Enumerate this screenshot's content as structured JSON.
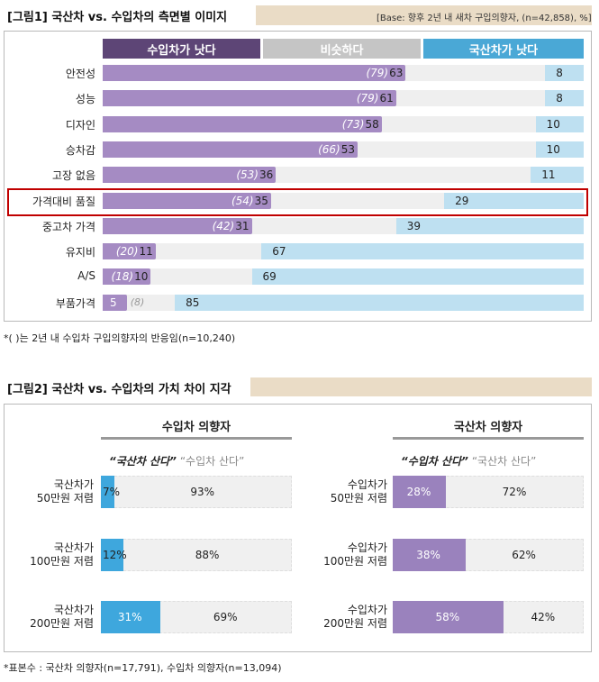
{
  "fig1": {
    "title": "[그림1] 국산차 vs. 수입차의 측면별 이미지",
    "base": "[Base: 향후 2년 내 새차 구입의향자, (n=42,858), %]",
    "header": {
      "left": "수입차가 낫다",
      "mid": "비슷하다",
      "right": "국산차가 낫다"
    },
    "footnote": "*( )는 2년 내 수입차 구입의향자의 반응임(n=10,240)"
  },
  "fig2": {
    "title": "[그림2] 국산차 vs. 수입차의 가치 차이 지각",
    "footnote": "*표본수 : 국산차 의향자(n=17,791), 수입차 의향자(n=13,094)",
    "groups": [
      {
        "name": "수입차 의향자",
        "legend_strong": "“국산차 산다”",
        "legend_weak": "“수입차 산다”"
      },
      {
        "name": "국산차 의향자",
        "legend_strong": "“수입차 산다”",
        "legend_weak": "“국산차 산다”"
      }
    ],
    "rows": [
      {
        "line1": "국산차가",
        "line2": "50만원 저렴"
      },
      {
        "line1": "국산차가",
        "line2": "100만원 저렴"
      },
      {
        "line1": "국산차가",
        "line2": "200만원 저렴"
      }
    ],
    "rows_right": [
      {
        "line1": "수입차가",
        "line2": "50만원 저렴"
      },
      {
        "line1": "수입차가",
        "line2": "100만원 저렴"
      },
      {
        "line1": "수입차가",
        "line2": "200만원 저렴"
      }
    ]
  },
  "chart_data": [
    {
      "type": "bar",
      "title": "[그림1] 국산차 vs. 수입차의 측면별 이미지",
      "categories": [
        "안전성",
        "성능",
        "디자인",
        "승차감",
        "고장 없음",
        "가격대비 품질",
        "중고차 가격",
        "유지비",
        "A/S",
        "부품가격"
      ],
      "series": [
        {
          "name": "수입차가 낫다",
          "values": [
            63,
            61,
            58,
            53,
            36,
            35,
            31,
            11,
            10,
            5
          ]
        },
        {
          "name": "국산차가 낫다",
          "values": [
            8,
            8,
            10,
            10,
            11,
            29,
            39,
            67,
            69,
            85
          ]
        },
        {
          "name": "( )",
          "values": [
            79,
            79,
            73,
            66,
            53,
            54,
            42,
            20,
            18,
            8
          ]
        }
      ],
      "highlight": "가격대비 품질",
      "colors": {
        "import": "#a58bc3",
        "domestic": "#bee0f1",
        "similar": "#efefef",
        "hdr_import": "#5d4576",
        "hdr_mid": "#c5c5c5",
        "hdr_domestic": "#4aa8d6",
        "highlight": "#c00000"
      }
    },
    {
      "type": "bar",
      "title": "[그림2] 국산차 vs. 수입차의 가치 차이 지각",
      "groups": [
        {
          "name": "수입차 의향자",
          "categories": [
            "국산차가 50만원 저렴",
            "국산차가 100만원 저렴",
            "국산차가 200만원 저렴"
          ],
          "series": [
            {
              "name": "“국산차 산다”",
              "values": [
                7,
                12,
                31
              ]
            },
            {
              "name": "“수입차 산다”",
              "values": [
                93,
                88,
                69
              ]
            }
          ],
          "color": "#3ea7dd"
        },
        {
          "name": "국산차 의향자",
          "categories": [
            "수입차가 50만원 저렴",
            "수입차가 100만원 저렴",
            "수입차가 200만원 저렴"
          ],
          "series": [
            {
              "name": "“수입차 산다”",
              "values": [
                28,
                38,
                58
              ]
            },
            {
              "name": "“국산차 산다”",
              "values": [
                72,
                62,
                42
              ]
            }
          ],
          "color": "#9a82bd"
        }
      ]
    }
  ]
}
